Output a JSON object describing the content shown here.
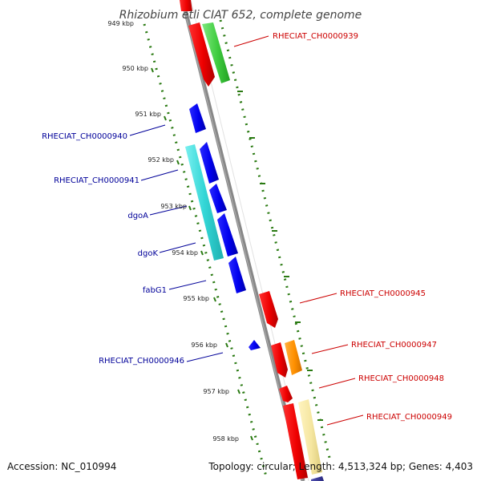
{
  "title": "Rhizobium etli CIAT 652, complete genome",
  "kbp_ticks": [
    "949 kbp",
    "950 kbp",
    "951 kbp",
    "952 kbp",
    "953 kbp",
    "954 kbp",
    "955 kbp",
    "956 kbp",
    "957 kbp",
    "958 kbp"
  ],
  "genes_left": [
    {
      "label": "RHECIAT_CH0000940"
    },
    {
      "label": "RHECIAT_CH0000941"
    },
    {
      "label": "dgoA"
    },
    {
      "label": "dgoK"
    },
    {
      "label": "fabG1"
    },
    {
      "label": "RHECIAT_CH0000946"
    }
  ],
  "genes_right": [
    {
      "label": "RHECIAT_CH0000939"
    },
    {
      "label": "RHECIAT_CH0000945"
    },
    {
      "label": "RHECIAT_CH0000947"
    },
    {
      "label": "RHECIAT_CH0000948"
    },
    {
      "label": "RHECIAT_CH0000949"
    }
  ],
  "footer": {
    "accession": "Accession: NC_010994",
    "summary": "Topology: circular; Length: 4,513,324 bp; Genes: 4,403"
  },
  "colors": {
    "reverse_strand_label": "#000099",
    "forward_strand_label": "#cc0000",
    "backbone": "#888888",
    "tick": "#2a7a12"
  }
}
